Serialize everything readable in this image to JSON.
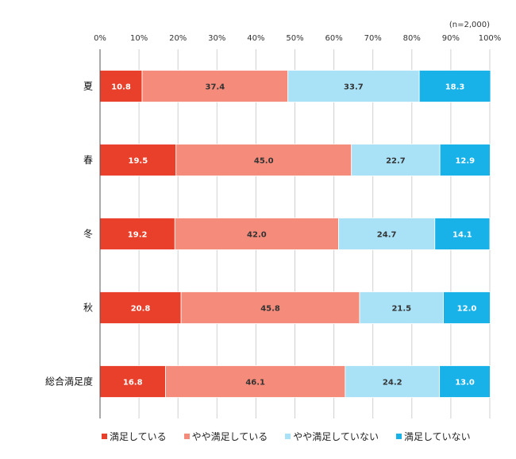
{
  "chart_data": {
    "type": "bar",
    "orientation": "horizontal",
    "stacked": true,
    "note": "(n=2,000)",
    "categories": [
      "夏",
      "春",
      "冬",
      "秋",
      "総合満足度"
    ],
    "series": [
      {
        "name": "満足している",
        "color": "#e8402a",
        "values": [
          10.8,
          19.5,
          19.2,
          20.8,
          16.8
        ]
      },
      {
        "name": "やや満足している",
        "color": "#f48b7b",
        "values": [
          37.4,
          45.0,
          42.0,
          45.8,
          46.1
        ]
      },
      {
        "name": "やや満足していない",
        "color": "#a9e2f7",
        "values": [
          33.7,
          22.7,
          24.7,
          21.5,
          24.2
        ]
      },
      {
        "name": "満足していない",
        "color": "#18b2e8",
        "values": [
          18.3,
          12.9,
          14.1,
          12.0,
          13.0
        ]
      }
    ],
    "value_labels": [
      [
        "10.8",
        "37.4",
        "33.7",
        "18.3"
      ],
      [
        "19.5",
        "45.0",
        "22.7",
        "12.9"
      ],
      [
        "19.2",
        "42.0",
        "24.7",
        "14.1"
      ],
      [
        "20.8",
        "45.8",
        "21.5",
        "12.0"
      ],
      [
        "16.8",
        "46.1",
        "24.2",
        "13.0"
      ]
    ],
    "label_colors": [
      "#ffffff",
      "#333333",
      "#333333",
      "#ffffff"
    ],
    "xlim": [
      0,
      100
    ],
    "xticks": [
      "0%",
      "10%",
      "20%",
      "30%",
      "40%",
      "50%",
      "60%",
      "70%",
      "80%",
      "90%",
      "100%"
    ],
    "legend_position": "bottom",
    "grid": "vertical"
  }
}
